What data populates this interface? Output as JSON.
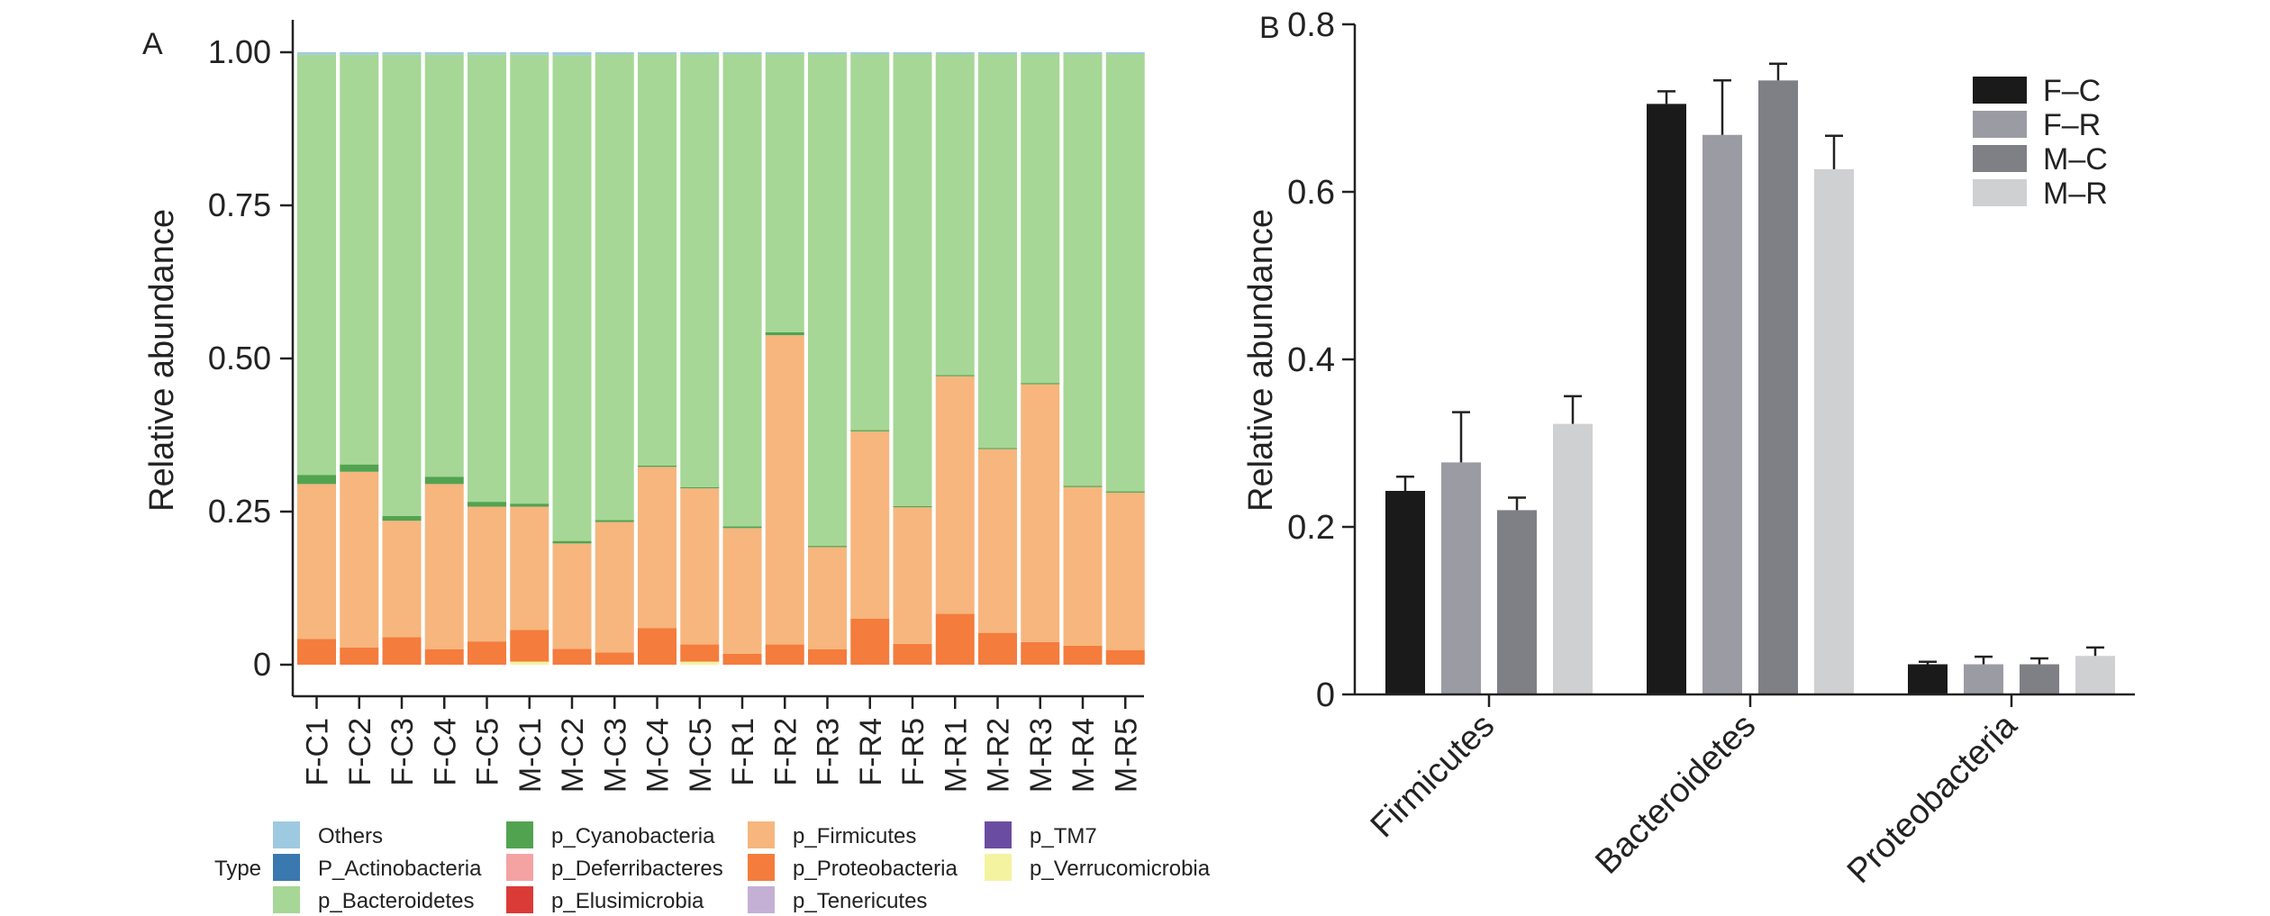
{
  "panels": {
    "a_letter": "A",
    "b_letter": "B"
  },
  "colors": {
    "Others": "#9ecae1",
    "P_Actinobacteria": "#3a78b0",
    "p_Bacteroidetes": "#a6d796",
    "p_Cyanobacteria": "#52a350",
    "p_Deferribacteres": "#f4a3a3",
    "p_Elusimicrobia": "#db3b36",
    "p_Firmicutes": "#f6b67e",
    "p_Proteobacteria": "#f47c3c",
    "p_Tenericutes": "#c5b0d5",
    "p_TM7": "#6a4da0",
    "p_Verrucomicrobia": "#f4f3a0",
    "F-C": "#1a1a1a",
    "F-R": "#9b9ca3",
    "M-C": "#7f8085",
    "M-R": "#cfd0d2"
  },
  "chart_data": [
    {
      "type": "bar",
      "stacked": true,
      "title": "",
      "xlabel": "",
      "ylabel": "Relative abundance",
      "ylim": [
        0,
        1
      ],
      "yticks": [
        "0",
        "0.25",
        "0.50",
        "0.75",
        "1.00"
      ],
      "ytick_values": [
        0,
        0.25,
        0.5,
        0.75,
        1.0
      ],
      "categories": [
        "F-C1",
        "F-C2",
        "F-C3",
        "F-C4",
        "F-C5",
        "M-C1",
        "M-C2",
        "M-C3",
        "M-C4",
        "M-C5",
        "F-R1",
        "F-R2",
        "F-R3",
        "F-R4",
        "F-R5",
        "M-R1",
        "M-R2",
        "M-R3",
        "M-R4",
        "M-R5"
      ],
      "legend_title": "Type",
      "legend_order": [
        "Others",
        "P_Actinobacteria",
        "p_Bacteroidetes",
        "p_Cyanobacteria",
        "p_Deferribacteres",
        "p_Elusimicrobia",
        "p_Firmicutes",
        "p_Proteobacteria",
        "p_Tenericutes",
        "p_TM7",
        "p_Verrucomicrobia"
      ],
      "stack_order": [
        "p_Verrucomicrobia",
        "p_Proteobacteria",
        "p_Firmicutes",
        "p_Cyanobacteria",
        "p_Bacteroidetes",
        "Others"
      ],
      "series": [
        {
          "name": "p_Verrucomicrobia",
          "values": [
            0.0,
            0.0,
            0.0,
            0.0,
            0.0,
            0.005,
            0.0,
            0.0,
            0.0,
            0.005,
            0.0,
            0.0,
            0.0,
            0.0,
            0.0,
            0.0,
            0.0,
            0.0,
            0.0,
            0.0
          ]
        },
        {
          "name": "p_Proteobacteria",
          "values": [
            0.042,
            0.028,
            0.045,
            0.025,
            0.038,
            0.052,
            0.026,
            0.02,
            0.06,
            0.028,
            0.018,
            0.033,
            0.025,
            0.075,
            0.034,
            0.083,
            0.052,
            0.037,
            0.031,
            0.024
          ]
        },
        {
          "name": "p_Firmicutes",
          "values": [
            0.253,
            0.287,
            0.19,
            0.27,
            0.22,
            0.201,
            0.172,
            0.213,
            0.263,
            0.255,
            0.205,
            0.505,
            0.167,
            0.306,
            0.223,
            0.388,
            0.3,
            0.421,
            0.259,
            0.257
          ]
        },
        {
          "name": "p_Cyanobacteria",
          "values": [
            0.015,
            0.012,
            0.008,
            0.012,
            0.008,
            0.005,
            0.004,
            0.003,
            0.002,
            0.002,
            0.003,
            0.005,
            0.002,
            0.002,
            0.002,
            0.002,
            0.002,
            0.002,
            0.002,
            0.002
          ]
        },
        {
          "name": "p_Bacteroidetes",
          "values": [
            0.686,
            0.669,
            0.753,
            0.689,
            0.73,
            0.733,
            0.793,
            0.761,
            0.672,
            0.707,
            0.771,
            0.454,
            0.803,
            0.614,
            0.738,
            0.524,
            0.643,
            0.537,
            0.705,
            0.714
          ]
        },
        {
          "name": "Others",
          "values": [
            0.004,
            0.004,
            0.004,
            0.004,
            0.004,
            0.004,
            0.005,
            0.003,
            0.003,
            0.003,
            0.003,
            0.003,
            0.003,
            0.003,
            0.003,
            0.003,
            0.003,
            0.003,
            0.003,
            0.003
          ]
        }
      ]
    },
    {
      "type": "bar",
      "title": "",
      "xlabel": "",
      "ylabel": "Relative abundance",
      "ylim": [
        0,
        0.8
      ],
      "yticks": [
        "0",
        "0.2",
        "0.4",
        "0.6",
        "0.8"
      ],
      "ytick_values": [
        0,
        0.2,
        0.4,
        0.6,
        0.8
      ],
      "categories": [
        "Firmicutes",
        "Bacteroidetes",
        "Proteobacteria"
      ],
      "legend_placement": "top-right",
      "series": [
        {
          "name": "F–C",
          "color_key": "F-C",
          "values": [
            0.243,
            0.705,
            0.036
          ],
          "errors": [
            0.017,
            0.015,
            0.003
          ]
        },
        {
          "name": "F–R",
          "color_key": "F-R",
          "values": [
            0.277,
            0.668,
            0.036
          ],
          "errors": [
            0.06,
            0.065,
            0.009
          ]
        },
        {
          "name": "M–C",
          "color_key": "M-C",
          "values": [
            0.22,
            0.733,
            0.036
          ],
          "errors": [
            0.015,
            0.02,
            0.007
          ]
        },
        {
          "name": "M–R",
          "color_key": "M-R",
          "values": [
            0.323,
            0.627,
            0.046
          ],
          "errors": [
            0.033,
            0.04,
            0.01
          ]
        }
      ]
    }
  ]
}
